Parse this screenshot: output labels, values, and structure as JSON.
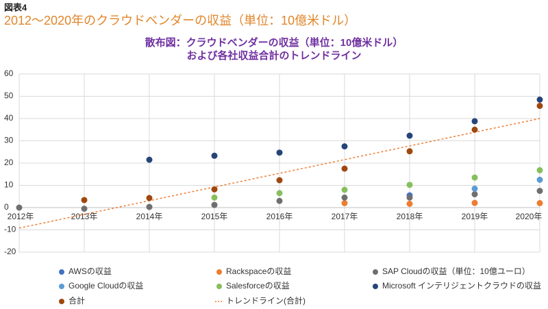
{
  "figure_label": "図表4",
  "subtitle": "2012〜2020年のクラウドベンダーの収益（単位：10億米ドル）",
  "chart_data": {
    "type": "scatter",
    "title": [
      "散布図：クラウドベンダーの収益（単位：10億米ドル）",
      "および各社収益合計のトレンドライン"
    ],
    "categories": [
      "2012年",
      "2013年",
      "2014年",
      "2015年",
      "2016年",
      "2017年",
      "2018年",
      "2019年",
      "2020年"
    ],
    "ylim": [
      -20,
      60
    ],
    "yticks": [
      -20,
      -10,
      0,
      10,
      20,
      30,
      40,
      50,
      60
    ],
    "grid": true,
    "series": [
      {
        "name": "AWSの収益",
        "color": "#4472c4",
        "values": [
          null,
          null,
          null,
          null,
          null,
          null,
          5.5,
          null,
          null
        ]
      },
      {
        "name": "Rackspaceの収益",
        "color": "#ed7d31",
        "values": [
          null,
          null,
          null,
          null,
          null,
          2,
          1.7,
          2.1,
          2
        ]
      },
      {
        "name": "SAP Cloudの収益（単位：10億ユーロ）",
        "color": "#6f6f6f",
        "values": [
          0,
          -0.5,
          0.3,
          1.2,
          3,
          4.5,
          4.5,
          6,
          7.5
        ]
      },
      {
        "name": "Google Cloudの収益",
        "color": "#5b9bd5",
        "values": [
          null,
          null,
          null,
          null,
          null,
          null,
          null,
          8.5,
          12.5
        ]
      },
      {
        "name": "Salesforceの収益",
        "color": "#86bf5e",
        "values": [
          null,
          null,
          null,
          4.5,
          6.5,
          8,
          10.2,
          13.5,
          16.8
        ]
      },
      {
        "name": "Microsoft インテリジェントクラウドの収益",
        "color": "#264478",
        "values": [
          null,
          null,
          21.5,
          23.3,
          24.7,
          27.5,
          32.3,
          38.8,
          48.5
        ]
      },
      {
        "name": "合計",
        "color": "#9e480e",
        "values": [
          null,
          3.4,
          4.3,
          8.2,
          12.3,
          17.5,
          25.3,
          35,
          45.7
        ]
      }
    ],
    "trendline": {
      "name": "トレンドライン(合計)",
      "color": "#ed7d31",
      "start": -9.2,
      "end": 40
    }
  }
}
